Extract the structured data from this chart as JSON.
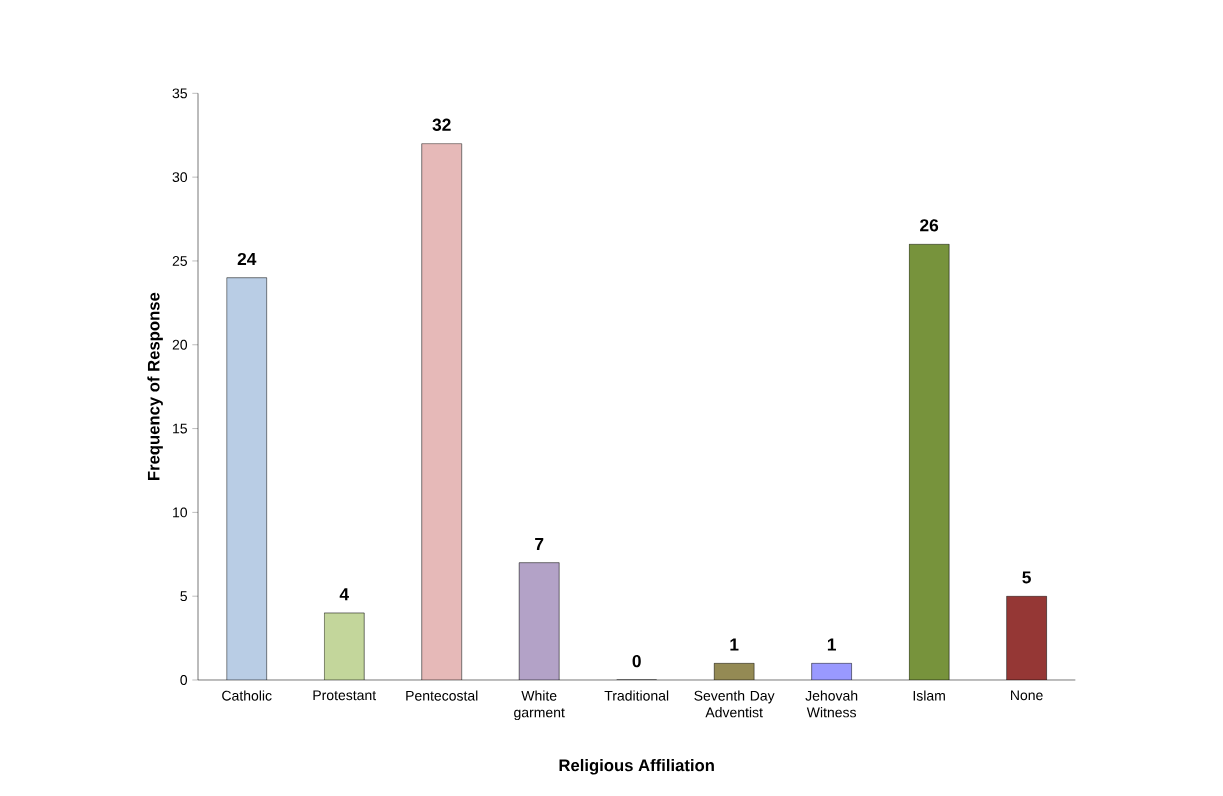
{
  "chart_data": {
    "type": "bar",
    "xlabel": "Religious Affiliation",
    "ylabel": "Frequency of Response",
    "categories": [
      "Catholic",
      "Protestant",
      "Pentecostal",
      "White garment",
      "Traditional",
      "Seventh Day Adventist",
      "Jehovah Witness",
      "Islam",
      "None"
    ],
    "values": [
      24,
      4,
      32,
      7,
      0,
      1,
      1,
      26,
      5
    ],
    "colors": [
      "#b9cde5",
      "#c3d69b",
      "#e6b9b8",
      "#b3a2c7",
      "#e46c0a",
      "#948a54",
      "#9999ff",
      "#77933c",
      "#953735"
    ],
    "ylim": [
      0,
      35
    ],
    "yticks": [
      0,
      5,
      10,
      15,
      20,
      25,
      30,
      35
    ],
    "data_labels": true
  }
}
